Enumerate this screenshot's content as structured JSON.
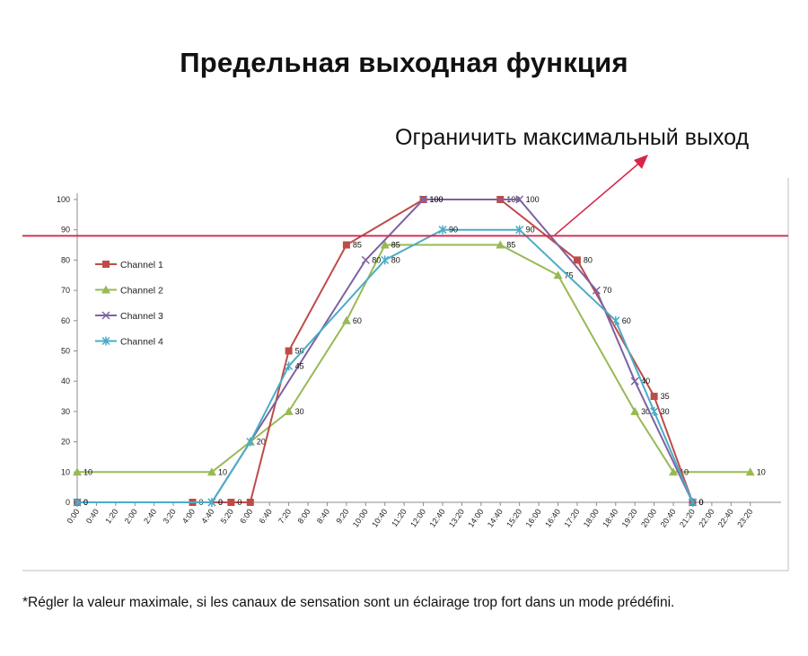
{
  "title": "Предельная выходная функция",
  "limit_note": "Ограничить максимальный выход",
  "footnote": "*Régler la valeur maximale, si les canaux de sensation sont un éclairage trop fort dans un mode prédéfini.",
  "colors": {
    "channel1": "#be4b48",
    "channel2": "#98b954",
    "channel3": "#7e62a1",
    "channel4": "#4bacc6",
    "limit": "#d6254a",
    "axis": "#bfbfbf"
  },
  "chart_data": {
    "type": "line",
    "ylim": [
      0,
      100
    ],
    "yticks": [
      0,
      10,
      20,
      30,
      40,
      50,
      60,
      70,
      80,
      90,
      100
    ],
    "xticks": [
      "0:00",
      "0:40",
      "1:20",
      "2:00",
      "2:40",
      "3:20",
      "4:00",
      "4:40",
      "5:20",
      "6:00",
      "6:40",
      "7:20",
      "8:00",
      "8:40",
      "9:20",
      "10:00",
      "10:40",
      "11:20",
      "12:00",
      "12:40",
      "13:20",
      "14:00",
      "14:40",
      "15:20",
      "16:00",
      "16:40",
      "17:20",
      "18:00",
      "18:40",
      "19:20",
      "20:00",
      "20:40",
      "21:20",
      "22:00",
      "22:40",
      "23:20"
    ],
    "legend_position": "upper-left",
    "limit_value": 88,
    "series": [
      {
        "name": "Channel 1",
        "marker": "square",
        "points": [
          {
            "x": "0:00",
            "y": 0,
            "label": "0"
          },
          {
            "x": "4:00",
            "y": 0,
            "label": "0"
          },
          {
            "x": "5:20",
            "y": 0,
            "label": "0"
          },
          {
            "x": "6:00",
            "y": 0,
            "label": ""
          },
          {
            "x": "7:20",
            "y": 50,
            "label": "50"
          },
          {
            "x": "9:20",
            "y": 85,
            "label": "85"
          },
          {
            "x": "12:00",
            "y": 100,
            "label": "100"
          },
          {
            "x": "14:40",
            "y": 100,
            "label": "100"
          },
          {
            "x": "17:20",
            "y": 80,
            "label": "80"
          },
          {
            "x": "20:00",
            "y": 35,
            "label": "35"
          },
          {
            "x": "21:20",
            "y": 0,
            "label": "0"
          }
        ]
      },
      {
        "name": "Channel 2",
        "marker": "triangle",
        "points": [
          {
            "x": "0:00",
            "y": 10,
            "label": "10"
          },
          {
            "x": "4:40",
            "y": 10,
            "label": "10"
          },
          {
            "x": "6:00",
            "y": 20,
            "label": "20"
          },
          {
            "x": "7:20",
            "y": 30,
            "label": "30"
          },
          {
            "x": "9:20",
            "y": 60,
            "label": "60"
          },
          {
            "x": "10:40",
            "y": 85,
            "label": "85"
          },
          {
            "x": "14:40",
            "y": 85,
            "label": "85"
          },
          {
            "x": "16:40",
            "y": 75,
            "label": "75"
          },
          {
            "x": "19:20",
            "y": 30,
            "label": "30"
          },
          {
            "x": "20:40",
            "y": 10,
            "label": "10"
          },
          {
            "x": "23:20",
            "y": 10,
            "label": "10"
          }
        ]
      },
      {
        "name": "Channel 3",
        "marker": "x",
        "points": [
          {
            "x": "0:00",
            "y": 0,
            "label": "0"
          },
          {
            "x": "4:40",
            "y": 0,
            "label": "0"
          },
          {
            "x": "10:00",
            "y": 80,
            "label": "80"
          },
          {
            "x": "12:00",
            "y": 100,
            "label": "100"
          },
          {
            "x": "15:20",
            "y": 100,
            "label": "100"
          },
          {
            "x": "18:00",
            "y": 70,
            "label": "70"
          },
          {
            "x": "19:20",
            "y": 40,
            "label": "40"
          },
          {
            "x": "21:20",
            "y": 0,
            "label": "0"
          }
        ]
      },
      {
        "name": "Channel 4",
        "marker": "star",
        "points": [
          {
            "x": "0:00",
            "y": 0,
            "label": "0"
          },
          {
            "x": "4:40",
            "y": 0,
            "label": "0"
          },
          {
            "x": "6:00",
            "y": 20,
            "label": ""
          },
          {
            "x": "7:20",
            "y": 45,
            "label": "45"
          },
          {
            "x": "10:40",
            "y": 80,
            "label": "80"
          },
          {
            "x": "12:40",
            "y": 90,
            "label": "90"
          },
          {
            "x": "15:20",
            "y": 90,
            "label": "90"
          },
          {
            "x": "18:40",
            "y": 60,
            "label": "60"
          },
          {
            "x": "20:00",
            "y": 30,
            "label": "30"
          },
          {
            "x": "21:20",
            "y": 0,
            "label": "0"
          }
        ]
      }
    ]
  }
}
